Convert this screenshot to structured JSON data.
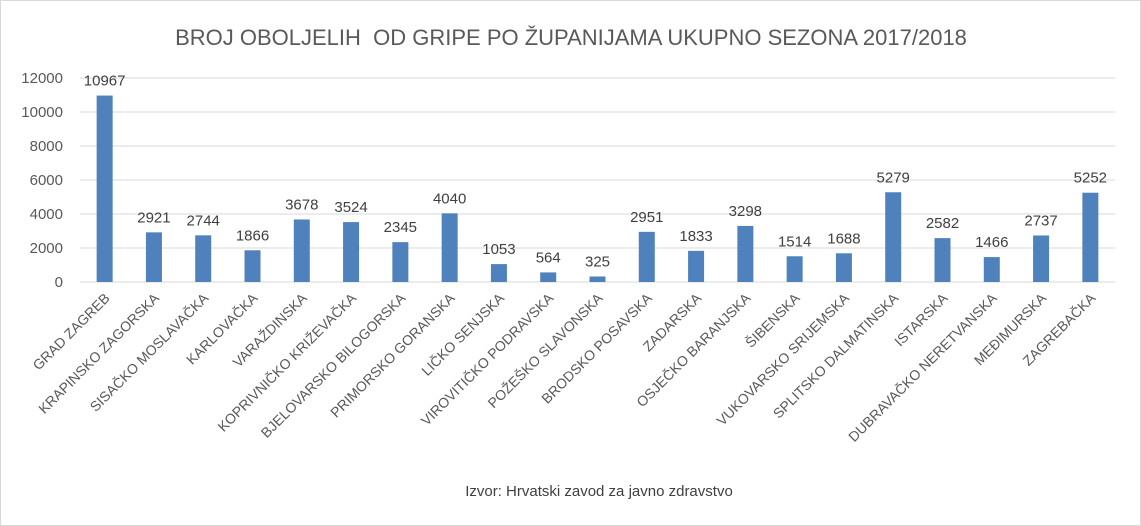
{
  "chart_data": {
    "type": "bar",
    "title": "BROJ OBOLJELIH  OD GRIPE PO ŽUPANIJAMA UKUPNO SEZONA 2017/2018",
    "source": "Izvor: Hrvatski zavod za javno zdravstvo",
    "categories": [
      "GRAD ZAGREB",
      "KRAPINSKO ZAGORSKA",
      "SISAČKO MOSLAVAČKA",
      "KARLOVAČKA",
      "VARAŽDINSKA",
      "KOPRIVNIČKO KRIŽEVAČKA",
      "BJELOVARSKO BILOGORSKA",
      "PRIMORSKO GORANSKA",
      "LIČKO SENJSKA",
      "VIROVITIČKO PODRAVSKA",
      "POŽEŠKO SLAVONSKA",
      "BRODSKO POSAVSKA",
      "ZADARSKA",
      "OSJEČKO BARANJSKA",
      "ŠIBENSKA",
      "VUKOVARSKO SRIJEMSKA",
      "SPLITSKO DALMATINSKA",
      "ISTARSKA",
      "DUBRAVAČKO NERETVANSKA",
      "MEĐIMURSKA",
      "ZAGREBAČKA"
    ],
    "values": [
      10967,
      2921,
      2744,
      1866,
      3678,
      3524,
      2345,
      4040,
      1053,
      564,
      325,
      2951,
      1833,
      3298,
      1514,
      1688,
      5279,
      2582,
      1466,
      2737,
      5252
    ],
    "data_labels": [
      "10967",
      "2921",
      "2744",
      "1866",
      "3678",
      "3524",
      "2345",
      "4040",
      "1053",
      "564",
      "325",
      "2951",
      "1833",
      "3298",
      "1514",
      "1688",
      "5279",
      "2582",
      "1466",
      "2737",
      "5252"
    ],
    "y_ticks": [
      0,
      2000,
      4000,
      6000,
      8000,
      10000,
      12000
    ],
    "y_tick_labels": [
      "0",
      "2000",
      "4000",
      "6000",
      "8000",
      "10000",
      "12000"
    ],
    "ylim": [
      0,
      12000
    ],
    "grid": true,
    "legend": "none",
    "bar_color": "#4f81bd"
  }
}
